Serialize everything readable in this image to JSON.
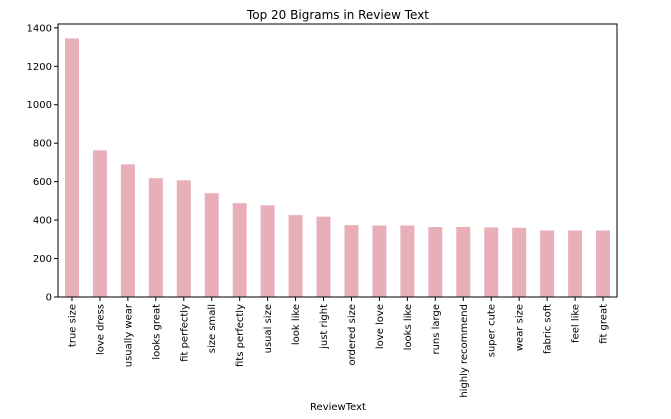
{
  "chart_data": {
    "type": "bar",
    "title": "Top 20 Bigrams in Review Text",
    "xlabel": "ReviewText",
    "ylabel": "",
    "ylim": [
      0,
      1420
    ],
    "yticks": [
      0,
      200,
      400,
      600,
      800,
      1000,
      1200,
      1400
    ],
    "grid": false,
    "legend": "none",
    "bar_color": "#e8afb8",
    "categories": [
      "true size",
      "love dress",
      "usually wear",
      "looks great",
      "fit perfectly",
      "size small",
      "fits perfectly",
      "usual size",
      "look like",
      "just right",
      "ordered size",
      "love love",
      "looks like",
      "runs large",
      "highly recommend",
      "super cute",
      "wear size",
      "fabric soft",
      "feel like",
      "fit great"
    ],
    "values": [
      1345,
      763,
      690,
      618,
      607,
      540,
      488,
      477,
      426,
      418,
      374,
      372,
      372,
      364,
      364,
      362,
      360,
      346,
      346,
      346
    ]
  }
}
